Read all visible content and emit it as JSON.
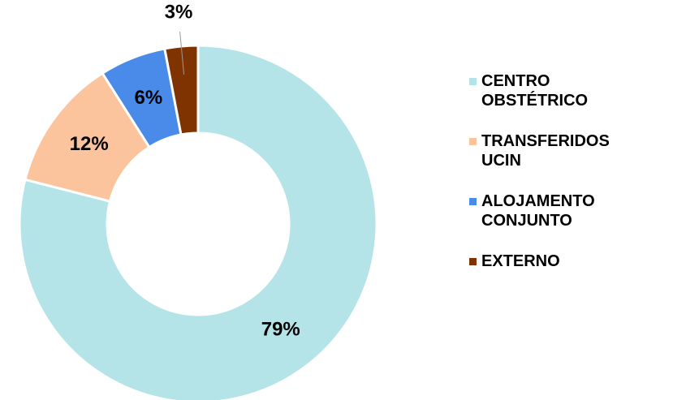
{
  "chart_data": {
    "type": "donut",
    "categories": [
      "CENTRO OBSTÉTRICO",
      "TRANSFERIDOS UCIN",
      "ALOJAMENTO CONJUNTO",
      "EXTERNO"
    ],
    "values": [
      79,
      12,
      6,
      3
    ],
    "value_labels": [
      "79%",
      "12%",
      "6%",
      "3%"
    ],
    "colors": [
      "#b4e4e8",
      "#fcc49c",
      "#4a8ae8",
      "#7f3300"
    ],
    "legend": "right"
  }
}
